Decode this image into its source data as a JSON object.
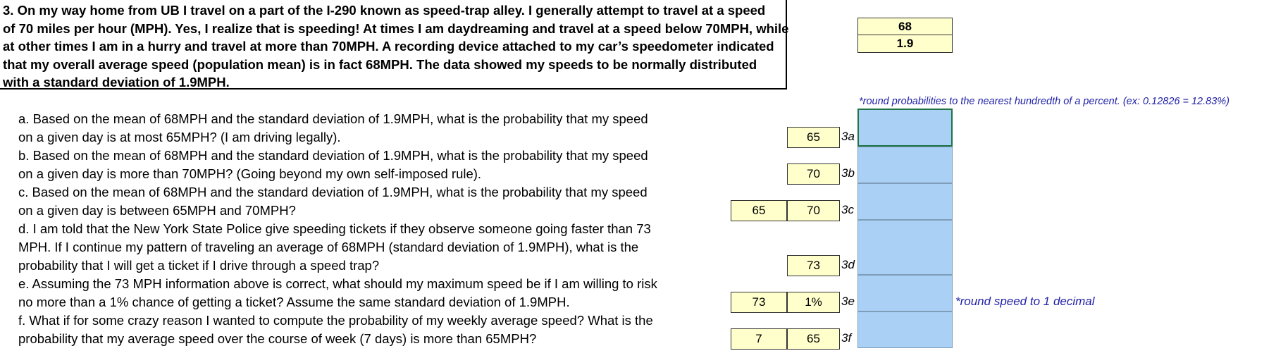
{
  "problem": {
    "lines": [
      "3. On my way home from UB I travel on a part of the I-290 known as speed-trap alley. I generally attempt to travel at a speed",
      " of 70 miles per hour (MPH). Yes, I realize that is speeding! At times I am daydreaming and travel at a speed below 70MPH, while",
      "at other times I am in a hurry and travel at more than 70MPH. A recording device attached to my car’s speedometer indicated",
      "that my overall average speed (population mean) is in fact 68MPH. The data showed my speeds to be normally distributed",
      "with a standard deviation of 1.9MPH."
    ]
  },
  "params": {
    "mean": "68",
    "sd": "1.9"
  },
  "notes": {
    "probability": "*round probabilities to the nearest hundredth of a percent. (ex: 0.12826 = 12.83%)",
    "speed": "*round speed to 1 decimal"
  },
  "questions": [
    "a. Based on the mean of 68MPH and the standard deviation of 1.9MPH, what is the probability that my speed",
    "on a given day is at most 65MPH? (I am driving legally).",
    "b. Based on the mean of 68MPH and the standard deviation of 1.9MPH, what is the probability that my speed",
    "on a given day is more than 70MPH? (Going beyond my own self-imposed rule).",
    "c. Based on the mean of 68MPH and the standard deviation of 1.9MPH, what is the probability that my speed",
    "on a given day is between 65MPH and 70MPH?",
    "d. I am told that the New York State Police give speeding tickets if they observe someone going faster than 73",
    "MPH. If I continue my pattern of traveling an average of 68MPH (standard deviation of 1.9MPH), what is the",
    "probability that I will get a ticket if I drive through a speed trap?",
    "e. Assuming the 73 MPH information above is correct, what should my maximum speed be if I am willing to risk",
    "no more than a 1% chance of getting a ticket? Assume the same standard deviation of 1.9MPH.",
    "f. What if for some crazy reason I wanted to compute the probability of my weekly average speed? What is the",
    "probability that my average speed over the course of week (7 days) is more than 65MPH?"
  ],
  "inputs": {
    "a": {
      "v2": "65",
      "tag": "3a"
    },
    "b": {
      "v2": "70",
      "tag": "3b"
    },
    "c": {
      "v1": "65",
      "v2": "70",
      "tag": "3c"
    },
    "d": {
      "v2": "73",
      "tag": "3d"
    },
    "e": {
      "v1": "73",
      "v2": "1%",
      "tag": "3e"
    },
    "f": {
      "v1": "7",
      "v2": "65",
      "tag": "3f"
    }
  },
  "colors": {
    "input_fill": "#ffffcc",
    "answer_fill": "#aad0f6",
    "note_text": "#1f1fa8"
  }
}
